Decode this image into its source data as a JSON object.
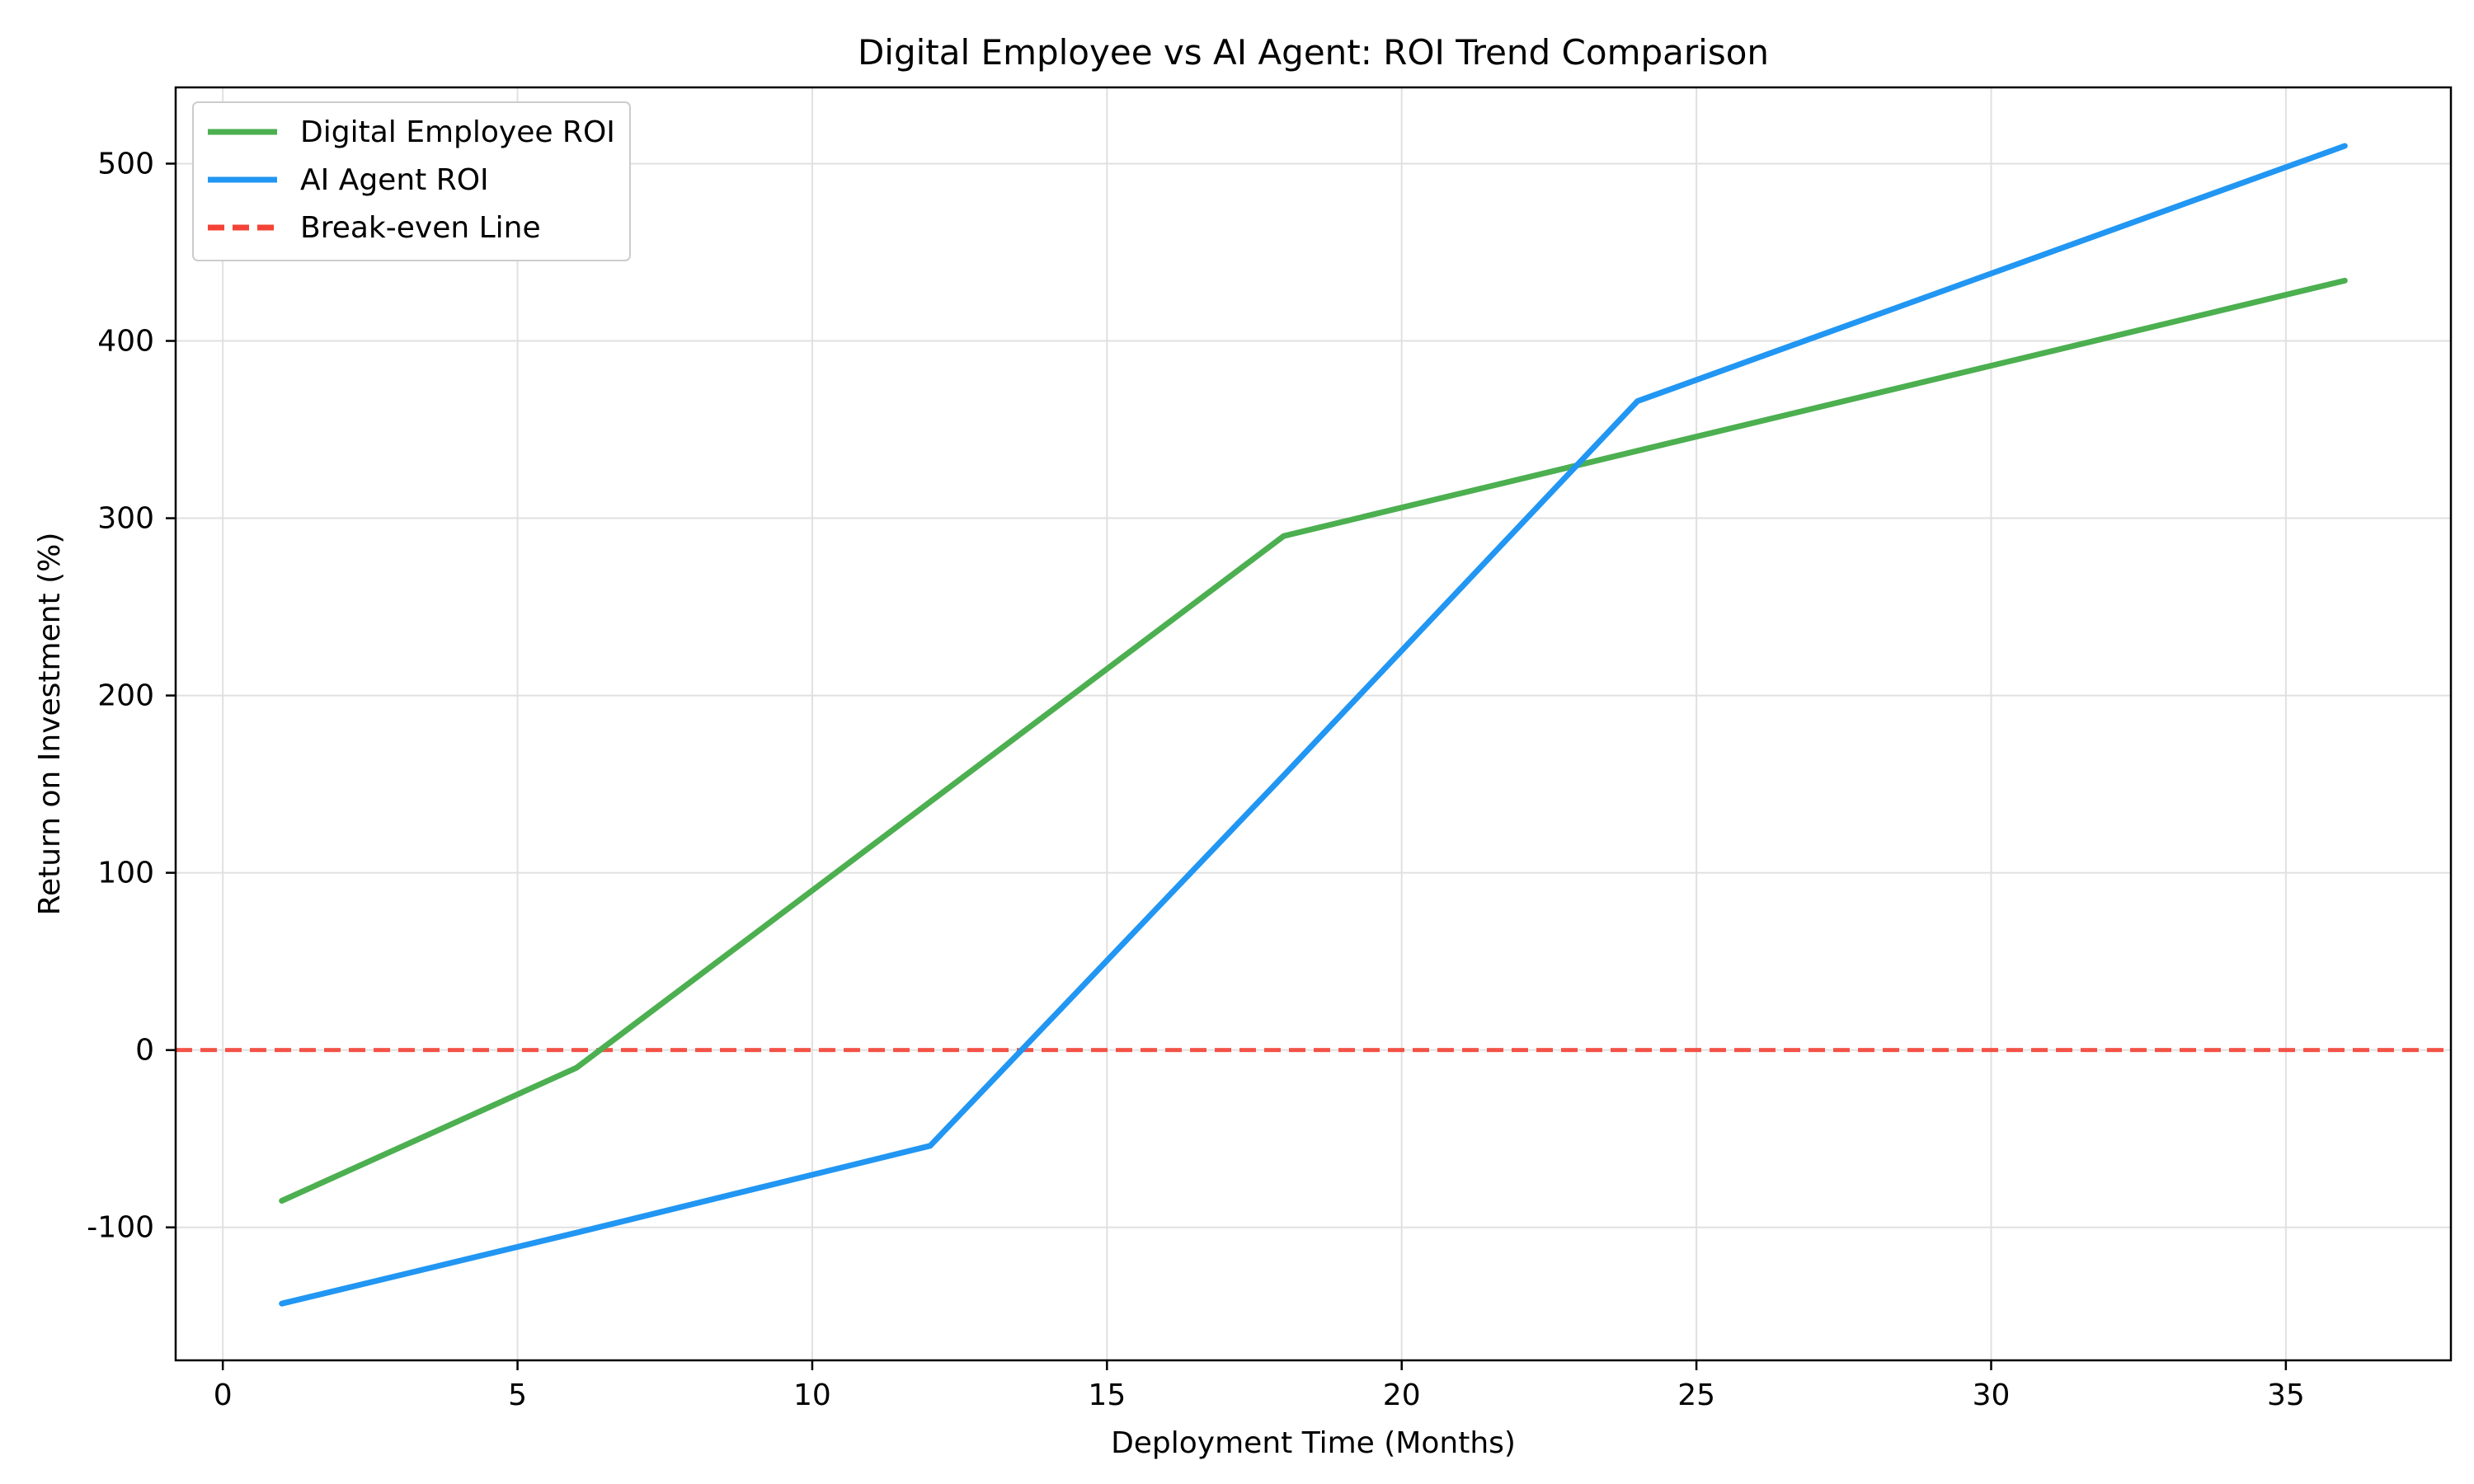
{
  "chart_data": {
    "type": "line",
    "title": "Digital Employee vs AI Agent: ROI Trend Comparison",
    "xlabel": "Deployment Time (Months)",
    "ylabel": "Return on Investment (%)",
    "xlim": [
      -0.8,
      37.8
    ],
    "ylim": [
      -175,
      543
    ],
    "xticks": [
      0,
      5,
      10,
      15,
      20,
      25,
      30,
      35
    ],
    "yticks": [
      -100,
      0,
      100,
      200,
      300,
      400,
      500
    ],
    "grid": true,
    "legend_position": "upper left",
    "series": [
      {
        "name": "Digital Employee ROI",
        "color": "#4caf50",
        "style": "solid",
        "x": [
          1,
          6,
          12,
          18,
          24,
          36
        ],
        "y": [
          -85,
          -10,
          140,
          290,
          338,
          434
        ]
      },
      {
        "name": "AI Agent ROI",
        "color": "#2196f3",
        "style": "solid",
        "x": [
          1,
          6,
          12,
          18,
          24,
          36
        ],
        "y": [
          -143,
          -103,
          -54,
          155,
          366,
          510
        ]
      }
    ],
    "reference_lines": [
      {
        "name": "Break-even Line",
        "y": 0,
        "color": "#f44336",
        "style": "dashed"
      }
    ]
  }
}
